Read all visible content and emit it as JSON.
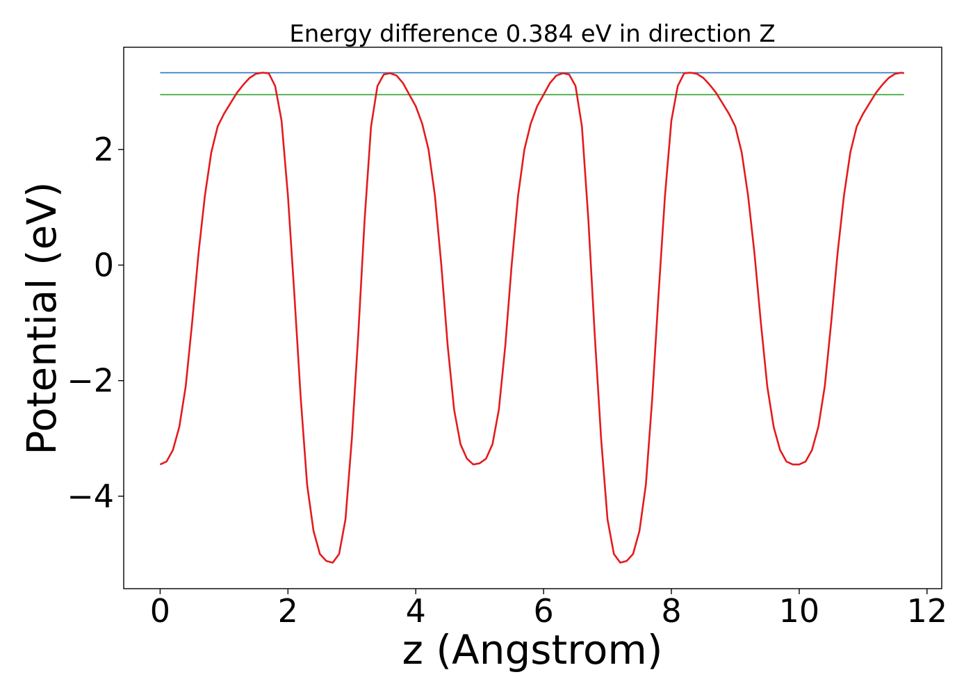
{
  "chart_data": {
    "type": "line",
    "title": "Energy difference 0.384 eV in direction Z",
    "xlabel": "z (Angstrom)",
    "ylabel": "Potential (eV)",
    "xlim": [
      -0.57,
      12.23
    ],
    "ylim": [
      -5.6,
      3.77
    ],
    "xticks": [
      0,
      2,
      4,
      6,
      8,
      10,
      12
    ],
    "yticks": [
      -4,
      -2,
      0,
      2
    ],
    "xtick_labels": [
      "0",
      "2",
      "4",
      "6",
      "8",
      "10",
      "12"
    ],
    "ytick_labels": [
      "−4",
      "−2",
      "0",
      "2"
    ],
    "grid": false,
    "legend": "none",
    "series": [
      {
        "color": "#e41a1c",
        "x": [
          0.0,
          0.1,
          0.2,
          0.3,
          0.4,
          0.5,
          0.6,
          0.7,
          0.8,
          0.9,
          1.0,
          1.1,
          1.2,
          1.3,
          1.4,
          1.5,
          1.6,
          1.7,
          1.8,
          1.9,
          2.0,
          2.1,
          2.2,
          2.3,
          2.4,
          2.5,
          2.6,
          2.7,
          2.8,
          2.9,
          3.0,
          3.1,
          3.2,
          3.3,
          3.4,
          3.5,
          3.6,
          3.7,
          3.8,
          3.9,
          4.0,
          4.1,
          4.2,
          4.3,
          4.4,
          4.5,
          4.6,
          4.7,
          4.8,
          4.9,
          5.0,
          5.1,
          5.2,
          5.3,
          5.4,
          5.5,
          5.6,
          5.7,
          5.8,
          5.9,
          6.0,
          6.1,
          6.2,
          6.3,
          6.4,
          6.5,
          6.6,
          6.7,
          6.8,
          6.9,
          7.0,
          7.1,
          7.2,
          7.3,
          7.4,
          7.5,
          7.6,
          7.7,
          7.8,
          7.9,
          8.0,
          8.1,
          8.2,
          8.3,
          8.4,
          8.5,
          8.6,
          8.7,
          8.8,
          8.9,
          9.0,
          9.1,
          9.2,
          9.3,
          9.4,
          9.5,
          9.6,
          9.7,
          9.8,
          9.9,
          10.0,
          10.1,
          10.2,
          10.3,
          10.4,
          10.5,
          10.6,
          10.7,
          10.8,
          10.9,
          11.0,
          11.1,
          11.2,
          11.3,
          11.4,
          11.5,
          11.6,
          11.64
        ],
        "y": [
          -3.45,
          -3.4,
          -3.2,
          -2.8,
          -2.1,
          -1.0,
          0.2,
          1.2,
          1.95,
          2.4,
          2.62,
          2.8,
          2.98,
          3.12,
          3.24,
          3.31,
          3.33,
          3.32,
          3.1,
          2.5,
          1.2,
          -0.5,
          -2.3,
          -3.8,
          -4.6,
          -5.0,
          -5.12,
          -5.15,
          -5.0,
          -4.4,
          -3.0,
          -1.2,
          0.8,
          2.4,
          3.1,
          3.3,
          3.32,
          3.28,
          3.15,
          2.95,
          2.75,
          2.45,
          2.0,
          1.2,
          0.0,
          -1.4,
          -2.5,
          -3.1,
          -3.35,
          -3.45,
          -3.43,
          -3.35,
          -3.1,
          -2.5,
          -1.4,
          0.0,
          1.2,
          2.0,
          2.45,
          2.75,
          2.95,
          3.15,
          3.28,
          3.32,
          3.3,
          3.1,
          2.4,
          0.8,
          -1.2,
          -3.0,
          -4.4,
          -5.0,
          -5.15,
          -5.12,
          -5.0,
          -4.6,
          -3.8,
          -2.3,
          -0.5,
          1.2,
          2.5,
          3.1,
          3.32,
          3.33,
          3.31,
          3.24,
          3.12,
          2.98,
          2.8,
          2.62,
          2.4,
          1.95,
          1.2,
          0.2,
          -1.0,
          -2.1,
          -2.8,
          -3.2,
          -3.4,
          -3.45,
          -3.45,
          -3.4,
          -3.2,
          -2.8,
          -2.1,
          -1.0,
          0.2,
          1.2,
          1.95,
          2.4,
          2.62,
          2.8,
          2.98,
          3.12,
          3.24,
          3.31,
          3.33,
          3.32
        ]
      },
      {
        "color": "#377eb8",
        "x": [
          0.0,
          11.64
        ],
        "y": [
          3.33,
          3.33
        ]
      },
      {
        "color": "#4daf4a",
        "x": [
          0.0,
          11.64
        ],
        "y": [
          2.95,
          2.95
        ]
      }
    ]
  }
}
